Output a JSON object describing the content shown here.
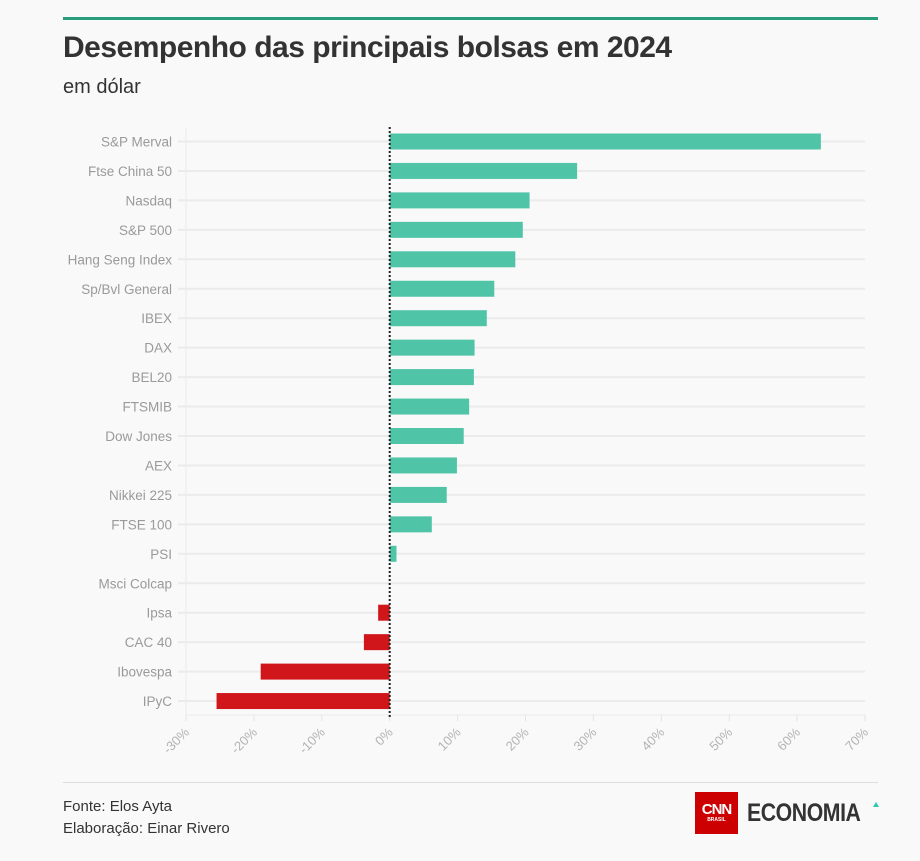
{
  "header": {
    "title": "Desempenho das principais bolsas em 2024",
    "subtitle": "em dólar"
  },
  "footer": {
    "source": "Fonte: Elos Ayta",
    "author": "Elaboração: Einar Rivero",
    "logo_cnn": "CNN",
    "logo_cnn_sub": "BRASIL",
    "logo_economia": "ECONOMIA"
  },
  "colors": {
    "positive": "#50c4a7",
    "negative": "#d0151b",
    "accent": "#2a9d7c"
  },
  "chart_data": {
    "type": "bar",
    "orientation": "horizontal",
    "title": "Desempenho das principais bolsas em 2024",
    "subtitle": "em dólar",
    "xlabel": "",
    "ylabel": "",
    "xlim": [
      -30,
      70
    ],
    "x_ticks": [
      -30,
      -20,
      -10,
      0,
      10,
      20,
      30,
      40,
      50,
      60,
      70
    ],
    "x_tick_labels": [
      "-30%",
      "-20%",
      "-10%",
      "0%",
      "10%",
      "20%",
      "30%",
      "40%",
      "50%",
      "60%",
      "70%"
    ],
    "grid": true,
    "categories": [
      "S&P Merval",
      "Ftse China 50",
      "Nasdaq",
      "S&P 500",
      "Hang Seng Index",
      "Sp/Bvl General",
      "IBEX",
      "DAX",
      "BEL20",
      "FTSMIB",
      "Dow Jones",
      "AEX",
      "Nikkei 225",
      "FTSE 100",
      "PSI",
      "Msci Colcap",
      "Ipsa",
      "CAC 40",
      "Ibovespa",
      "IPyC"
    ],
    "values": [
      63.5,
      27.6,
      20.6,
      19.6,
      18.5,
      15.4,
      14.3,
      12.5,
      12.4,
      11.7,
      10.9,
      9.9,
      8.4,
      6.2,
      1.0,
      0.0,
      -1.7,
      -3.8,
      -19.0,
      -25.5
    ]
  }
}
